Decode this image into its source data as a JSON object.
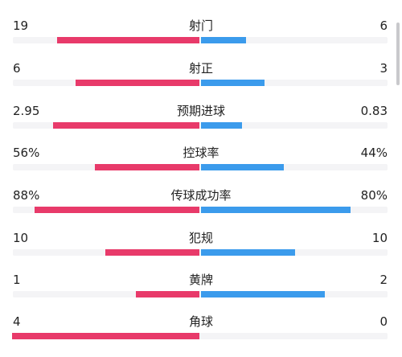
{
  "colors": {
    "home": "#e83a6a",
    "away": "#3b9bec",
    "track": "#f4f4f6"
  },
  "stats": [
    {
      "label": "射门",
      "home": "19",
      "away": "6",
      "home_fill": 0.38,
      "away_fill": 0.12
    },
    {
      "label": "射正",
      "home": "6",
      "away": "3",
      "home_fill": 0.33,
      "away_fill": 0.17
    },
    {
      "label": "预期进球",
      "home": "2.95",
      "away": "0.83",
      "home_fill": 0.39,
      "away_fill": 0.11
    },
    {
      "label": "控球率",
      "home": "56%",
      "away": "44%",
      "home_fill": 0.28,
      "away_fill": 0.22
    },
    {
      "label": "传球成功率",
      "home": "88%",
      "away": "80%",
      "home_fill": 0.44,
      "away_fill": 0.4
    },
    {
      "label": "犯规",
      "home": "10",
      "away": "10",
      "home_fill": 0.25,
      "away_fill": 0.25
    },
    {
      "label": "黄牌",
      "home": "1",
      "away": "2",
      "home_fill": 0.17,
      "away_fill": 0.33
    },
    {
      "label": "角球",
      "home": "4",
      "away": "0",
      "home_fill": 0.5,
      "away_fill": 0.0
    }
  ]
}
